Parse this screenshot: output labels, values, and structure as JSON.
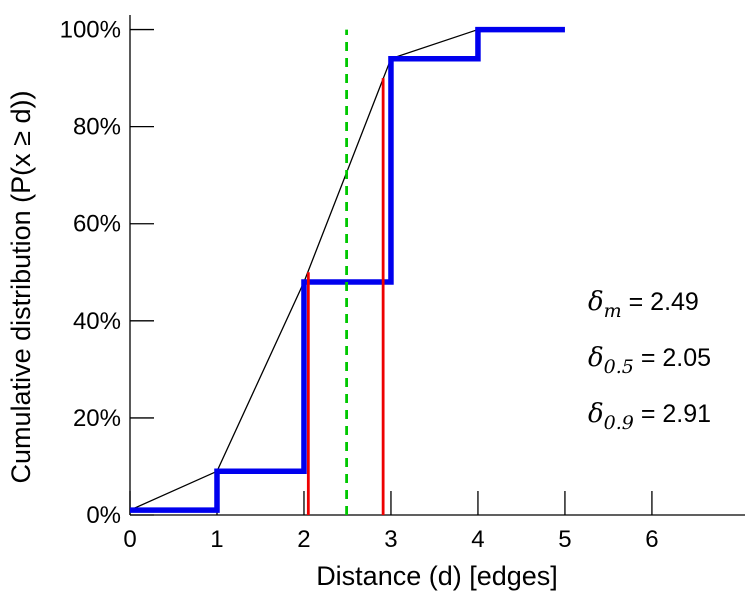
{
  "chart_data": {
    "type": "line",
    "title": "",
    "xlabel": "Distance (d) [edges]",
    "ylabel": "Cumulative distribution (P(x  ≥ d))",
    "xlim": [
      0,
      7.07
    ],
    "ylim": [
      0,
      103
    ],
    "grid": false,
    "legend": "none",
    "x_ticks": [
      0,
      1,
      2,
      3,
      4,
      5,
      6
    ],
    "x_tick_labels": [
      "0",
      "1",
      "2",
      "3",
      "4",
      "5",
      "6"
    ],
    "y_ticks": [
      0,
      20,
      40,
      60,
      80,
      100
    ],
    "y_tick_labels": [
      "0%",
      "20%",
      "40%",
      "60%",
      "80%",
      "100%"
    ],
    "series": [
      {
        "name": "linear-interpolation-line",
        "type": "line",
        "color": "#000000",
        "width": 1.3,
        "points": [
          [
            0,
            1
          ],
          [
            1,
            9
          ],
          [
            2,
            48
          ],
          [
            3,
            94
          ],
          [
            4,
            100
          ]
        ]
      },
      {
        "name": "empirical-cdf-step",
        "type": "step-after",
        "color": "#0000ee",
        "width": 5.5,
        "points": [
          [
            0,
            1
          ],
          [
            1,
            9
          ],
          [
            2,
            48
          ],
          [
            3,
            94
          ],
          [
            4,
            100
          ],
          [
            5,
            100
          ]
        ]
      },
      {
        "name": "median-vline",
        "type": "vline",
        "color": "#ee0000",
        "width": 2.8,
        "x": 2.05,
        "y": 50
      },
      {
        "name": "p90-vline",
        "type": "vline",
        "color": "#ee0000",
        "width": 2.8,
        "x": 2.91,
        "y": 90
      },
      {
        "name": "mean-vline",
        "type": "vline",
        "color": "#00c800",
        "width": 2.8,
        "dash": "9,7",
        "x": 2.49,
        "y": 100
      }
    ],
    "stats": {
      "mean": 2.49,
      "median": 2.05,
      "p90": 2.91
    },
    "annotations": [
      {
        "symbol": "δ",
        "sub": "m",
        "value": " = 2.49"
      },
      {
        "symbol": "δ",
        "sub": "0.5",
        "value": " = 2.05"
      },
      {
        "symbol": "δ",
        "sub": "0.9",
        "value": " = 2.91"
      }
    ]
  }
}
